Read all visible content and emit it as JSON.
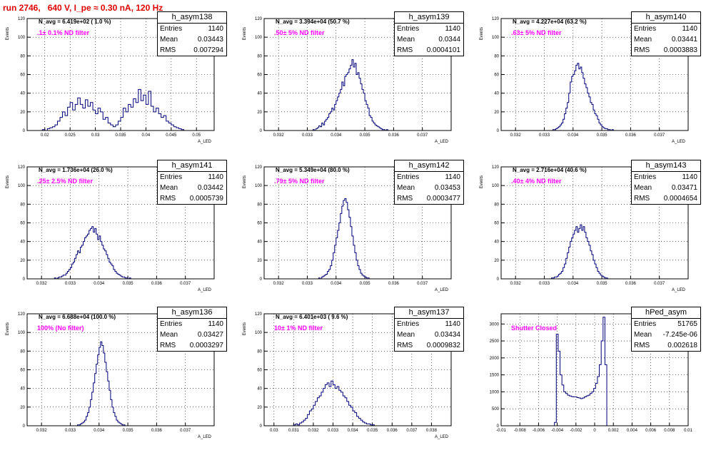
{
  "page_title": "run 2746,   640 V, I_pe ≈ 0.30 nA, 120 Hz",
  "stats_labels": {
    "entries": "Entries",
    "mean": "Mean",
    "rms": "RMS"
  },
  "colors": {
    "histogram": "#00007a",
    "title": "#e00000",
    "filter_label": "#ff00ff"
  },
  "chart_data": [
    {
      "type": "bar",
      "title": "h_asym138",
      "annotation": "N_avg = 6.419e+02 ( 1.0 %)",
      "label": ".1± 0.1% ND filter",
      "ylabel": "Events",
      "xlabel": "A_LED",
      "xlim": [
        0.0165,
        0.0535
      ],
      "ylim": [
        0,
        120
      ],
      "xticks": [
        "0.02",
        "0.025",
        "0.03",
        "0.035",
        "0.04",
        "0.045",
        "0.05"
      ],
      "yticks": [
        "0",
        "20",
        "40",
        "60",
        "80",
        "100",
        "120"
      ],
      "stats": {
        "entries": "1140",
        "mean": "0.03443",
        "rms": "0.007294"
      },
      "bins": {
        "x0": 0.0185,
        "width": 0.0005,
        "values": [
          0,
          0,
          1,
          0,
          2,
          3,
          4,
          6,
          10,
          14,
          20,
          16,
          25,
          30,
          22,
          28,
          35,
          28,
          24,
          33,
          26,
          30,
          22,
          18,
          24,
          20,
          12,
          14,
          8,
          6,
          4,
          6,
          10,
          14,
          24,
          20,
          28,
          25,
          34,
          30,
          44,
          32,
          38,
          28,
          42,
          26,
          20,
          24,
          18,
          14,
          16,
          10,
          8,
          6,
          4,
          3,
          2,
          1,
          0,
          0,
          0,
          0,
          0,
          0,
          0,
          0,
          0
        ]
      }
    },
    {
      "type": "bar",
      "title": "h_asym139",
      "annotation": "N_avg = 3.394e+04 (50.7 %)",
      "label": ".50± 5% ND filter",
      "ylabel": "Events",
      "xlabel": "A_LED",
      "xlim": [
        0.0315,
        0.038
      ],
      "ylim": [
        0,
        120
      ],
      "xticks": [
        "0.032",
        "0.033",
        "0.034",
        "0.035",
        "0.036",
        "0.037"
      ],
      "yticks": [
        "0",
        "20",
        "40",
        "60",
        "80",
        "100",
        "120"
      ],
      "stats": {
        "entries": "1140",
        "mean": "0.0344",
        "rms": "0.0004101"
      },
      "bins": {
        "x0": 0.0332,
        "width": 5e-05,
        "values": [
          1,
          0,
          2,
          3,
          5,
          4,
          8,
          6,
          10,
          12,
          14,
          18,
          20,
          24,
          22,
          28,
          32,
          36,
          40,
          44,
          52,
          48,
          58,
          60,
          62,
          66,
          70,
          76,
          68,
          72,
          60,
          62,
          56,
          50,
          44,
          40,
          32,
          28,
          24,
          16,
          14,
          10,
          8,
          6,
          5,
          4,
          3,
          2,
          1,
          1,
          0,
          1,
          0,
          0
        ]
      }
    },
    {
      "type": "bar",
      "title": "h_asym140",
      "annotation": "N_avg = 4.227e+04 (63.2 %)",
      "label": ".63± 5% ND filter",
      "ylabel": "Events",
      "xlabel": "A_LED",
      "xlim": [
        0.0315,
        0.038
      ],
      "ylim": [
        0,
        120
      ],
      "xticks": [
        "0.032",
        "0.033",
        "0.034",
        "0.035",
        "0.036",
        "0.037"
      ],
      "yticks": [
        "0",
        "20",
        "40",
        "60",
        "80",
        "100",
        "120"
      ],
      "stats": {
        "entries": "1140",
        "mean": "0.03441",
        "rms": "0.0003883"
      },
      "bins": {
        "x0": 0.0333,
        "width": 5e-05,
        "values": [
          1,
          1,
          2,
          3,
          4,
          6,
          8,
          12,
          18,
          24,
          30,
          40,
          52,
          58,
          60,
          64,
          70,
          72,
          66,
          68,
          62,
          56,
          50,
          46,
          40,
          36,
          30,
          28,
          22,
          18,
          16,
          12,
          8,
          6,
          4,
          3,
          2,
          2,
          1,
          1,
          0,
          1
        ]
      }
    },
    {
      "type": "bar",
      "title": "h_asym141",
      "annotation": "N_avg = 1.736e+04 (26.0 %)",
      "label": ".25± 2.5% ND filter",
      "ylabel": "Events",
      "xlabel": "A_LED",
      "xlim": [
        0.0315,
        0.038
      ],
      "ylim": [
        0,
        120
      ],
      "xticks": [
        "0.032",
        "0.033",
        "0.034",
        "0.035",
        "0.036",
        "0.037"
      ],
      "yticks": [
        "0",
        "20",
        "40",
        "60",
        "80",
        "100",
        "120"
      ],
      "stats": {
        "entries": "1140",
        "mean": "0.03442",
        "rms": "0.0005739"
      },
      "bins": {
        "x0": 0.0324,
        "width": 5e-05,
        "values": [
          0,
          1,
          0,
          1,
          2,
          2,
          3,
          4,
          4,
          6,
          8,
          10,
          12,
          16,
          18,
          22,
          26,
          30,
          28,
          34,
          36,
          40,
          44,
          46,
          48,
          52,
          54,
          56,
          50,
          54,
          48,
          42,
          46,
          40,
          36,
          32,
          30,
          26,
          22,
          18,
          16,
          14,
          10,
          8,
          6,
          5,
          4,
          3,
          2,
          2,
          1,
          1,
          0,
          1
        ]
      }
    },
    {
      "type": "bar",
      "title": "h_asym142",
      "annotation": "N_avg = 5.349e+04 (80.0 %)",
      "label": ".79± 5% ND filter",
      "ylabel": "Events",
      "xlabel": "A_LED",
      "xlim": [
        0.0315,
        0.038
      ],
      "ylim": [
        0,
        120
      ],
      "xticks": [
        "0.032",
        "0.033",
        "0.034",
        "0.035",
        "0.036",
        "0.037"
      ],
      "yticks": [
        "0",
        "20",
        "40",
        "60",
        "80",
        "100",
        "120"
      ],
      "stats": {
        "entries": "1140",
        "mean": "0.03453",
        "rms": "0.0003477"
      },
      "bins": {
        "x0": 0.0334,
        "width": 5e-05,
        "values": [
          1,
          0,
          2,
          3,
          4,
          5,
          8,
          10,
          14,
          20,
          28,
          36,
          44,
          52,
          60,
          70,
          78,
          84,
          86,
          82,
          74,
          66,
          56,
          46,
          36,
          28,
          20,
          14,
          10,
          6,
          4,
          3,
          2,
          1,
          1,
          0
        ]
      }
    },
    {
      "type": "bar",
      "title": "h_asym143",
      "annotation": "N_avg = 2.716e+04 (40.6 %)",
      "label": ".40± 4% ND filter",
      "ylabel": "Events",
      "xlabel": "A_LED",
      "xlim": [
        0.0315,
        0.038
      ],
      "ylim": [
        0,
        120
      ],
      "xticks": [
        "0.032",
        "0.033",
        "0.034",
        "0.035",
        "0.036",
        "0.037"
      ],
      "yticks": [
        "0",
        "20",
        "40",
        "60",
        "80",
        "100",
        "120"
      ],
      "stats": {
        "entries": "1140",
        "mean": "0.03471",
        "rms": "0.0004654"
      },
      "bins": {
        "x0": 0.0332,
        "width": 5e-05,
        "values": [
          0,
          1,
          1,
          2,
          2,
          3,
          5,
          6,
          8,
          12,
          16,
          22,
          28,
          34,
          40,
          44,
          48,
          52,
          56,
          50,
          54,
          58,
          52,
          56,
          50,
          44,
          40,
          36,
          30,
          26,
          20,
          16,
          12,
          8,
          6,
          4,
          3,
          2,
          1,
          1,
          0
        ]
      }
    },
    {
      "type": "bar",
      "title": "h_asym136",
      "annotation": "N_avg = 6.688e+04 (100.0 %)",
      "label": "100% (No filter)",
      "ylabel": "Events",
      "xlabel": "A_LED",
      "xlim": [
        0.0315,
        0.038
      ],
      "ylim": [
        0,
        120
      ],
      "xticks": [
        "0.032",
        "0.033",
        "0.034",
        "0.035",
        "0.036",
        "0.037"
      ],
      "yticks": [
        "0",
        "20",
        "40",
        "60",
        "80",
        "100",
        "120"
      ],
      "stats": {
        "entries": "1140",
        "mean": "0.03427",
        "rms": "0.0003297"
      },
      "bins": {
        "x0": 0.0332,
        "width": 5e-05,
        "values": [
          0,
          1,
          1,
          2,
          3,
          4,
          6,
          10,
          14,
          20,
          28,
          36,
          46,
          56,
          66,
          76,
          84,
          90,
          86,
          78,
          68,
          58,
          48,
          38,
          28,
          20,
          14,
          10,
          6,
          4,
          3,
          2,
          1,
          1,
          0
        ]
      }
    },
    {
      "type": "bar",
      "title": "h_asym137",
      "annotation": "N_avg = 6.401e+03 ( 9.6 %)",
      "label": "10± 1% ND filter",
      "ylabel": "Events",
      "xlabel": "A_LED",
      "xlim": [
        0.0295,
        0.039
      ],
      "ylim": [
        0,
        120
      ],
      "xticks": [
        "0.03",
        "0.031",
        "0.032",
        "0.033",
        "0.034",
        "0.035",
        "0.036",
        "0.037",
        "0.038"
      ],
      "yticks": [
        "0",
        "20",
        "40",
        "60",
        "80",
        "100",
        "120"
      ],
      "stats": {
        "entries": "1140",
        "mean": "0.03434",
        "rms": "0.0009832"
      },
      "bins": {
        "x0": 0.031,
        "width": 0.0001,
        "values": [
          1,
          2,
          1,
          3,
          4,
          6,
          8,
          12,
          16,
          18,
          22,
          26,
          30,
          32,
          36,
          40,
          44,
          46,
          42,
          48,
          44,
          40,
          42,
          38,
          36,
          32,
          30,
          26,
          22,
          20,
          16,
          14,
          10,
          8,
          6,
          4,
          3,
          2,
          2,
          1,
          1,
          0
        ]
      }
    },
    {
      "type": "bar",
      "title": "hPed_asym",
      "annotation": "",
      "label": "Shutter Closed",
      "ylabel": "",
      "xlabel": "",
      "xlim": [
        -0.01,
        0.01
      ],
      "ylim": [
        0,
        3300
      ],
      "xticks": [
        "-0.01",
        "-0.008",
        "-0.006",
        "-0.004",
        "-0.002",
        "0",
        "0.002",
        "0.004",
        "0.006",
        "0.008",
        "0.01"
      ],
      "yticks": [
        "0",
        "500",
        "1000",
        "1500",
        "2000",
        "2500",
        "3000"
      ],
      "stats": {
        "entries": "51765",
        "mean": "-7.245e-06",
        "rms": "0.002618"
      },
      "bins": {
        "x0": -0.0045,
        "width": 0.0002,
        "values": [
          0,
          100,
          2700,
          2200,
          1500,
          1200,
          1000,
          950,
          900,
          880,
          860,
          850,
          850,
          830,
          820,
          800,
          820,
          850,
          880,
          900,
          950,
          1000,
          1100,
          1250,
          1450,
          1800,
          2500,
          3200,
          1800,
          0
        ]
      }
    }
  ]
}
